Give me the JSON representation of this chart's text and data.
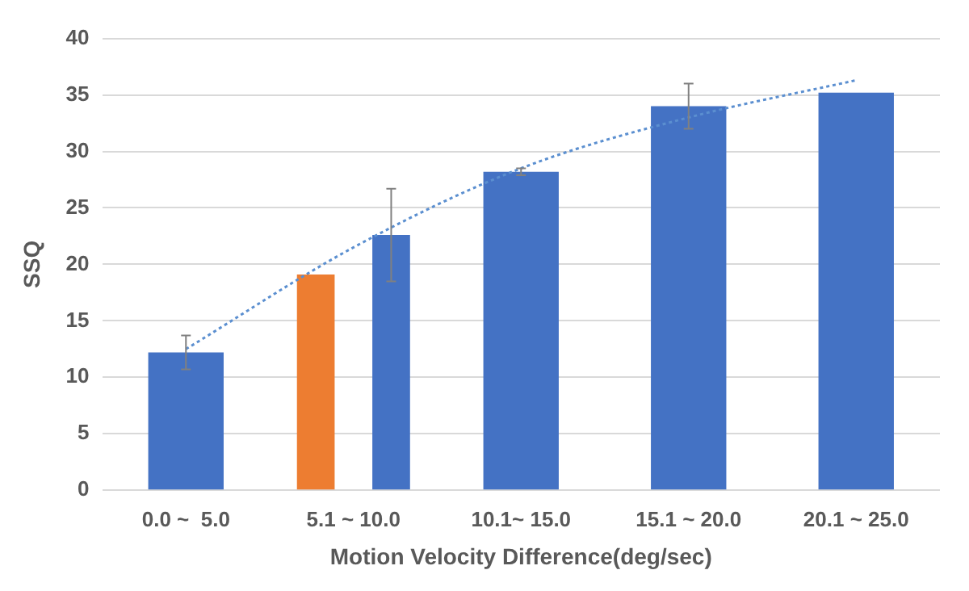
{
  "chart_data": {
    "type": "bar",
    "xlabel": "Motion Velocity Difference(deg/sec)",
    "ylabel": "SSQ",
    "categories": [
      "0.0 ~  5.0",
      "5.1 ~ 10.0",
      "10.1~ 15.0",
      "15.1 ~ 20.0",
      "20.1 ~ 25.0"
    ],
    "series": [
      {
        "color": "#ed7d31",
        "values": [
          null,
          19.1,
          null,
          null,
          null
        ]
      },
      {
        "color": "#4472c4",
        "values": [
          12.2,
          22.6,
          28.2,
          34.0,
          35.2
        ],
        "errors": [
          1.5,
          4.1,
          0.3,
          2.0,
          null
        ]
      },
      {
        "type": "line",
        "color": "#5b8fd0",
        "line_style": "dotted",
        "marker": "none",
        "values": [
          12.5,
          21.5,
          28.5,
          33.0,
          36.3
        ]
      }
    ],
    "ylim": [
      0,
      40
    ],
    "yticks": [
      0,
      5,
      10,
      15,
      20,
      25,
      30,
      35,
      40
    ],
    "grid": "y",
    "legend": false
  }
}
